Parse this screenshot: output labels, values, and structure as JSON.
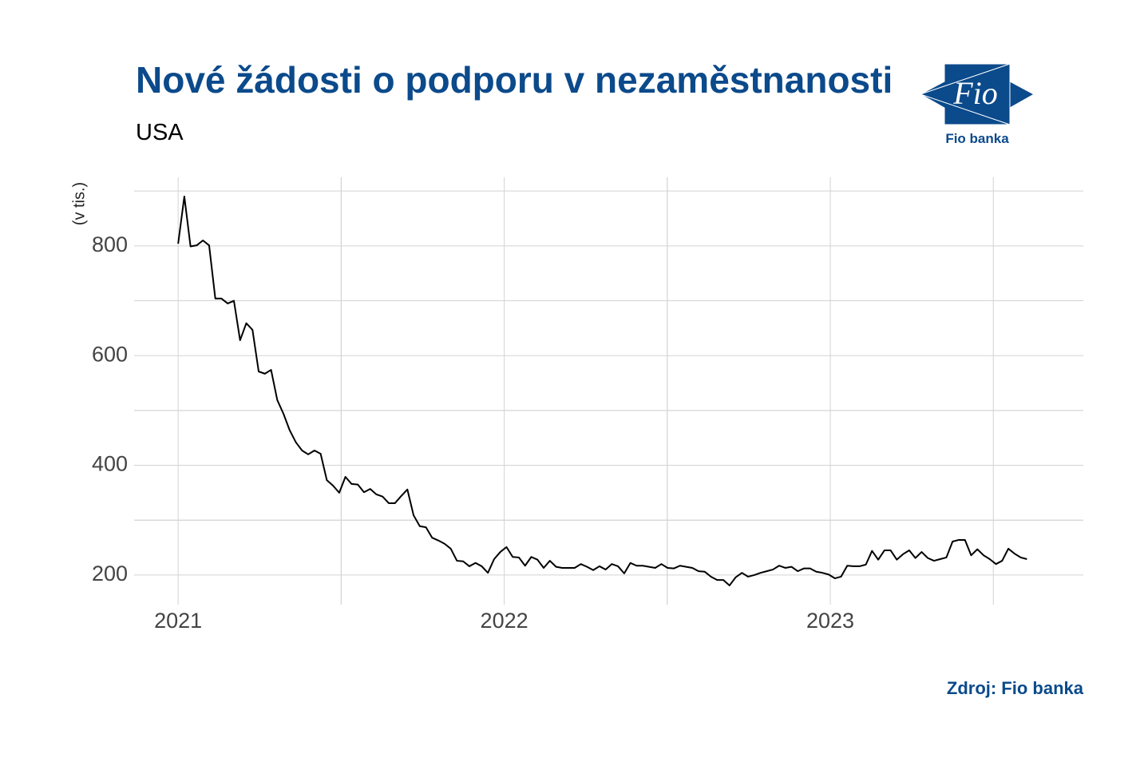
{
  "logo": {
    "mark": "Fio",
    "caption": "Fio banka"
  },
  "chart_data": {
    "type": "line",
    "title": "Nové žádosti o podporu v nezaměstnanosti",
    "subtitle": "USA",
    "ylabel": "(v tis.)",
    "source": "Zdroj: Fio banka",
    "x": [
      2021,
      2021.019,
      2021.038,
      2021.057,
      2021.076,
      2021.095,
      2021.114,
      2021.133,
      2021.152,
      2021.171,
      2021.19,
      2021.209,
      2021.228,
      2021.247,
      2021.266,
      2021.285,
      2021.304,
      2021.323,
      2021.342,
      2021.361,
      2021.38,
      2021.399,
      2021.418,
      2021.437,
      2021.456,
      2021.475,
      2021.494,
      2021.513,
      2021.532,
      2021.551,
      2021.57,
      2021.589,
      2021.608,
      2021.627,
      2021.646,
      2021.665,
      2021.684,
      2021.703,
      2021.722,
      2021.741,
      2021.76,
      2021.779,
      2021.798,
      2021.817,
      2021.836,
      2021.855,
      2021.874,
      2021.893,
      2021.912,
      2021.931,
      2021.95,
      2021.969,
      2021.988,
      2022.007,
      2022.026,
      2022.045,
      2022.064,
      2022.083,
      2022.102,
      2022.121,
      2022.14,
      2022.159,
      2022.178,
      2022.197,
      2022.216,
      2022.235,
      2022.254,
      2022.273,
      2022.292,
      2022.311,
      2022.33,
      2022.349,
      2022.368,
      2022.387,
      2022.406,
      2022.425,
      2022.444,
      2022.463,
      2022.482,
      2022.501,
      2022.52,
      2022.539,
      2022.558,
      2022.577,
      2022.596,
      2022.615,
      2022.634,
      2022.653,
      2022.672,
      2022.691,
      2022.71,
      2022.729,
      2022.748,
      2022.767,
      2022.786,
      2022.805,
      2022.824,
      2022.843,
      2022.862,
      2022.881,
      2022.9,
      2022.919,
      2022.938,
      2022.957,
      2022.976,
      2022.995,
      2023.014,
      2023.033,
      2023.052,
      2023.071,
      2023.09,
      2023.109,
      2023.128,
      2023.147,
      2023.166,
      2023.185,
      2023.204,
      2023.223,
      2023.242,
      2023.261,
      2023.28,
      2023.299,
      2023.318,
      2023.337,
      2023.356,
      2023.375,
      2023.394,
      2023.413,
      2023.432,
      2023.451,
      2023.47,
      2023.489,
      2023.508,
      2023.527,
      2023.546,
      2023.565,
      2023.584,
      2023.603
    ],
    "series": [
      {
        "name": "USA",
        "color": "#000000",
        "values": [
          804,
          890,
          799,
          801,
          810,
          801,
          704,
          704,
          695,
          700,
          628,
          659,
          647,
          571,
          567,
          574,
          519,
          494,
          464,
          442,
          427,
          420,
          427,
          421,
          373,
          363,
          350,
          379,
          366,
          365,
          351,
          357,
          347,
          343,
          331,
          331,
          344,
          356,
          309,
          289,
          287,
          268,
          263,
          257,
          248,
          226,
          225,
          216,
          222,
          216,
          204,
          229,
          242,
          251,
          233,
          232,
          217,
          233,
          228,
          213,
          226,
          215,
          213,
          213,
          213,
          220,
          215,
          209,
          216,
          210,
          220,
          216,
          203,
          222,
          217,
          217,
          215,
          213,
          220,
          213,
          212,
          217,
          215,
          213,
          207,
          206,
          197,
          191,
          191,
          181,
          196,
          204,
          197,
          200,
          204,
          207,
          210,
          217,
          213,
          215,
          207,
          212,
          212,
          206,
          204,
          201,
          194,
          197,
          217,
          216,
          216,
          219,
          244,
          228,
          245,
          245,
          228,
          238,
          245,
          231,
          242,
          231,
          226,
          229,
          232,
          261,
          264,
          264,
          236,
          247,
          236,
          229,
          220,
          226,
          248,
          239,
          232,
          229
        ]
      }
    ],
    "xlim": [
      2020.865,
      2023.776
    ],
    "xticks": [
      2021,
      2022,
      2023
    ],
    "ylim": [
      146,
      925
    ],
    "yticks": [
      200,
      400,
      600,
      800
    ],
    "grid": true,
    "minor_grid": true,
    "legend": false
  }
}
